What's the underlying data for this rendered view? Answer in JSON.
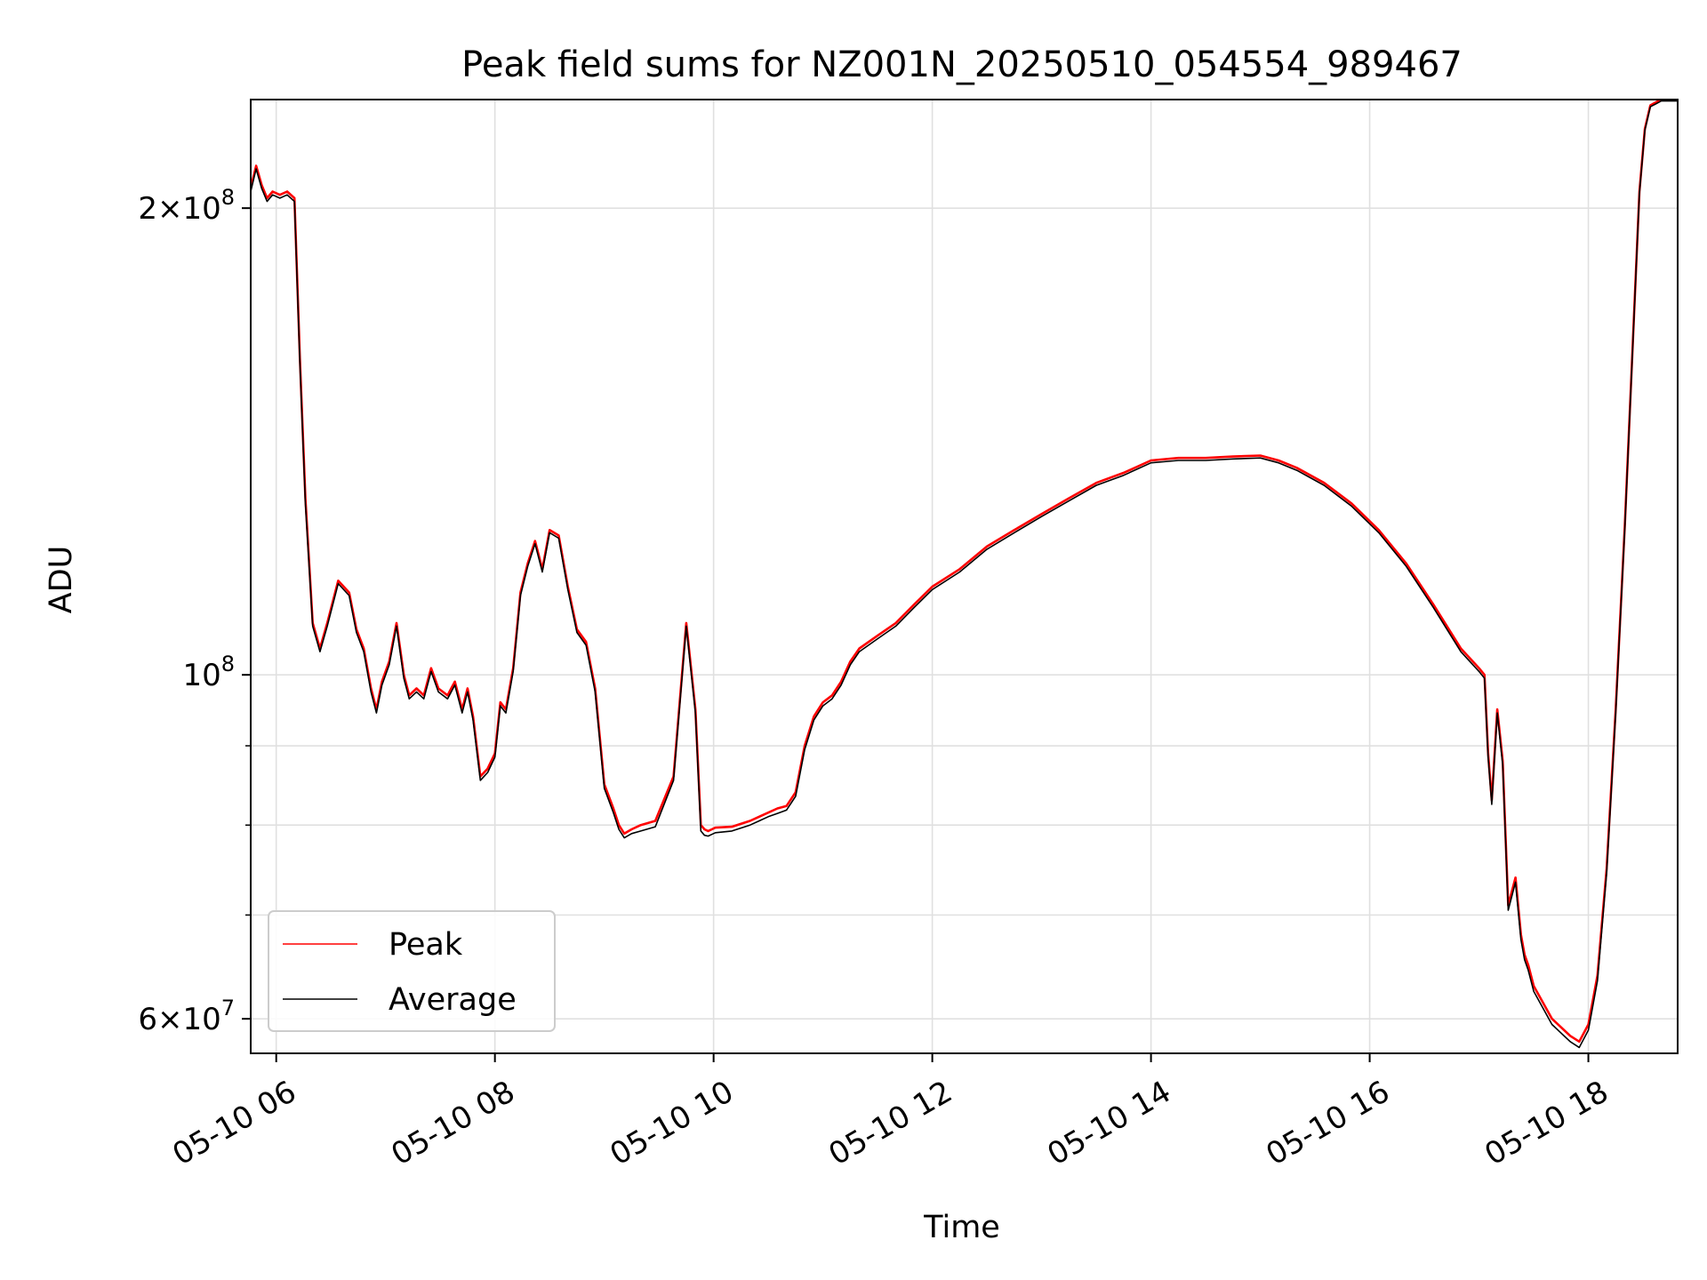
{
  "chart_data": {
    "type": "line",
    "title": "Peak field sums for NZ001N_20250510_054554_989467",
    "xlabel": "Time",
    "ylabel": "ADU",
    "yscale": "log",
    "xlim": [
      "05-10 05:46",
      "05-10 18:49"
    ],
    "ylim": [
      57000000,
      235000000
    ],
    "grid": true,
    "legend_position": "lower-left",
    "x_ticks": [
      {
        "value": "05-10 06:00",
        "label": "05-10 06"
      },
      {
        "value": "05-10 08:00",
        "label": "05-10 08"
      },
      {
        "value": "05-10 10:00",
        "label": "05-10 10"
      },
      {
        "value": "05-10 12:00",
        "label": "05-10 12"
      },
      {
        "value": "05-10 14:00",
        "label": "05-10 14"
      },
      {
        "value": "05-10 16:00",
        "label": "05-10 16"
      },
      {
        "value": "05-10 18:00",
        "label": "05-10 18"
      }
    ],
    "y_ticks": [
      {
        "value": 200000000,
        "mantissa": "2",
        "exponent": "8"
      },
      {
        "value": 100000000,
        "mantissa": "",
        "exponent": "8"
      },
      {
        "value": 60000000,
        "mantissa": "6",
        "exponent": "7"
      }
    ],
    "y_minor_ticks": [
      70000000,
      80000000,
      90000000
    ],
    "series": [
      {
        "name": "Peak",
        "color": "#ff0000",
        "x": [
          "05-10 05:46",
          "05-10 05:49",
          "05-10 05:52",
          "05-10 05:55",
          "05-10 05:58",
          "05-10 06:02",
          "05-10 06:06",
          "05-10 06:10",
          "05-10 06:13",
          "05-10 06:16",
          "05-10 06:20",
          "05-10 06:24",
          "05-10 06:28",
          "05-10 06:34",
          "05-10 06:40",
          "05-10 06:44",
          "05-10 06:48",
          "05-10 06:52",
          "05-10 06:55",
          "05-10 06:58",
          "05-10 07:02",
          "05-10 07:06",
          "05-10 07:10",
          "05-10 07:13",
          "05-10 07:17",
          "05-10 07:21",
          "05-10 07:25",
          "05-10 07:29",
          "05-10 07:34",
          "05-10 07:38",
          "05-10 07:42",
          "05-10 07:45",
          "05-10 07:48",
          "05-10 07:52",
          "05-10 07:56",
          "05-10 08:00",
          "05-10 08:03",
          "05-10 08:06",
          "05-10 08:10",
          "05-10 08:14",
          "05-10 08:18",
          "05-10 08:22",
          "05-10 08:26",
          "05-10 08:30",
          "05-10 08:35",
          "05-10 08:40",
          "05-10 08:45",
          "05-10 08:50",
          "05-10 08:55",
          "05-10 09:00",
          "05-10 09:05",
          "05-10 09:08",
          "05-10 09:11",
          "05-10 09:15",
          "05-10 09:20",
          "05-10 09:28",
          "05-10 09:38",
          "05-10 09:45",
          "05-10 09:50",
          "05-10 09:53",
          "05-10 09:55",
          "05-10 09:57",
          "05-10 09:59",
          "05-10 10:01",
          "05-10 10:10",
          "05-10 10:20",
          "05-10 10:25",
          "05-10 10:30",
          "05-10 10:35",
          "05-10 10:40",
          "05-10 10:45",
          "05-10 10:50",
          "05-10 10:55",
          "05-10 11:00",
          "05-10 11:05",
          "05-10 11:10",
          "05-10 11:15",
          "05-10 11:20",
          "05-10 11:30",
          "05-10 11:40",
          "05-10 11:50",
          "05-10 12:00",
          "05-10 12:15",
          "05-10 12:30",
          "05-10 12:45",
          "05-10 13:00",
          "05-10 13:15",
          "05-10 13:30",
          "05-10 13:45",
          "05-10 14:00",
          "05-10 14:15",
          "05-10 14:30",
          "05-10 14:45",
          "05-10 15:00",
          "05-10 15:10",
          "05-10 15:20",
          "05-10 15:35",
          "05-10 15:50",
          "05-10 16:05",
          "05-10 16:20",
          "05-10 16:35",
          "05-10 16:50",
          "05-10 17:00",
          "05-10 17:03",
          "05-10 17:05",
          "05-10 17:07",
          "05-10 17:10",
          "05-10 17:13",
          "05-10 17:16",
          "05-10 17:20",
          "05-10 17:23",
          "05-10 17:25",
          "05-10 17:27",
          "05-10 17:30",
          "05-10 17:40",
          "05-10 17:50",
          "05-10 17:55",
          "05-10 18:00",
          "05-10 18:05",
          "05-10 18:10",
          "05-10 18:15",
          "05-10 18:20",
          "05-10 18:25",
          "05-10 18:28",
          "05-10 18:31",
          "05-10 18:34",
          "05-10 18:37",
          "05-10 18:40",
          "05-10 18:49"
        ],
        "y": [
          206000000,
          213000000,
          207000000,
          203000000,
          205000000,
          204000000,
          205000000,
          203000000,
          160000000,
          130000000,
          108000000,
          104000000,
          108000000,
          115000000,
          113000000,
          107000000,
          104000000,
          98000000,
          95000000,
          99000000,
          102000000,
          108000000,
          100000000,
          97000000,
          98000000,
          97000000,
          101000000,
          98000000,
          97000000,
          99000000,
          95000000,
          98000000,
          94000000,
          86000000,
          87000000,
          89000000,
          96000000,
          95000000,
          101000000,
          113000000,
          118000000,
          122000000,
          117000000,
          124000000,
          123000000,
          114000000,
          107000000,
          105000000,
          98000000,
          85000000,
          82000000,
          80000000,
          79000000,
          79500000,
          80000000,
          80500000,
          86000000,
          108000000,
          95000000,
          80000000,
          79500000,
          79300000,
          79500000,
          79700000,
          79800000,
          80500000,
          81000000,
          81500000,
          82000000,
          82300000,
          84000000,
          90000000,
          94000000,
          96000000,
          97000000,
          99000000,
          102000000,
          104000000,
          106000000,
          108000000,
          111000000,
          114000000,
          117000000,
          121000000,
          124000000,
          127000000,
          130000000,
          133000000,
          135000000,
          137500000,
          138000000,
          138000000,
          138300000,
          138500000,
          137500000,
          136000000,
          133000000,
          129000000,
          124000000,
          118000000,
          111000000,
          104000000,
          101000000,
          100000000,
          89000000,
          83000000,
          95000000,
          88000000,
          71000000,
          74000000,
          68000000,
          66000000,
          65000000,
          63000000,
          60000000,
          58500000,
          58000000,
          59500000,
          64000000,
          75000000,
          95000000,
          125000000,
          170000000,
          205000000,
          225000000,
          233000000,
          234000000,
          235000000,
          235000000
        ]
      },
      {
        "name": "Average",
        "color": "#000000",
        "x": [
          "05-10 05:46",
          "05-10 05:49",
          "05-10 05:52",
          "05-10 05:55",
          "05-10 05:58",
          "05-10 06:02",
          "05-10 06:06",
          "05-10 06:10",
          "05-10 06:13",
          "05-10 06:16",
          "05-10 06:20",
          "05-10 06:24",
          "05-10 06:28",
          "05-10 06:34",
          "05-10 06:40",
          "05-10 06:44",
          "05-10 06:48",
          "05-10 06:52",
          "05-10 06:55",
          "05-10 06:58",
          "05-10 07:02",
          "05-10 07:06",
          "05-10 07:10",
          "05-10 07:13",
          "05-10 07:17",
          "05-10 07:21",
          "05-10 07:25",
          "05-10 07:29",
          "05-10 07:34",
          "05-10 07:38",
          "05-10 07:42",
          "05-10 07:45",
          "05-10 07:48",
          "05-10 07:52",
          "05-10 07:56",
          "05-10 08:00",
          "05-10 08:03",
          "05-10 08:06",
          "05-10 08:10",
          "05-10 08:14",
          "05-10 08:18",
          "05-10 08:22",
          "05-10 08:26",
          "05-10 08:30",
          "05-10 08:35",
          "05-10 08:40",
          "05-10 08:45",
          "05-10 08:50",
          "05-10 08:55",
          "05-10 09:00",
          "05-10 09:05",
          "05-10 09:08",
          "05-10 09:11",
          "05-10 09:15",
          "05-10 09:20",
          "05-10 09:28",
          "05-10 09:38",
          "05-10 09:45",
          "05-10 09:50",
          "05-10 09:53",
          "05-10 09:55",
          "05-10 09:57",
          "05-10 09:59",
          "05-10 10:01",
          "05-10 10:10",
          "05-10 10:20",
          "05-10 10:25",
          "05-10 10:30",
          "05-10 10:35",
          "05-10 10:40",
          "05-10 10:45",
          "05-10 10:50",
          "05-10 10:55",
          "05-10 11:00",
          "05-10 11:05",
          "05-10 11:10",
          "05-10 11:15",
          "05-10 11:20",
          "05-10 11:30",
          "05-10 11:40",
          "05-10 11:50",
          "05-10 12:00",
          "05-10 12:15",
          "05-10 12:30",
          "05-10 12:45",
          "05-10 13:00",
          "05-10 13:15",
          "05-10 13:30",
          "05-10 13:45",
          "05-10 14:00",
          "05-10 14:15",
          "05-10 14:30",
          "05-10 14:45",
          "05-10 15:00",
          "05-10 15:10",
          "05-10 15:20",
          "05-10 15:35",
          "05-10 15:50",
          "05-10 16:05",
          "05-10 16:20",
          "05-10 16:35",
          "05-10 16:50",
          "05-10 17:00",
          "05-10 17:03",
          "05-10 17:05",
          "05-10 17:07",
          "05-10 17:10",
          "05-10 17:13",
          "05-10 17:16",
          "05-10 17:20",
          "05-10 17:23",
          "05-10 17:25",
          "05-10 17:27",
          "05-10 17:30",
          "05-10 17:40",
          "05-10 17:50",
          "05-10 17:55",
          "05-10 18:00",
          "05-10 18:05",
          "05-10 18:10",
          "05-10 18:15",
          "05-10 18:20",
          "05-10 18:25",
          "05-10 18:28",
          "05-10 18:31",
          "05-10 18:34",
          "05-10 18:37",
          "05-10 18:40",
          "05-10 18:49"
        ],
        "y": [
          205000000,
          212000000,
          206000000,
          202000000,
          204000000,
          203000000,
          204000000,
          202000000,
          159000000,
          129000000,
          107500000,
          103500000,
          107500000,
          114500000,
          112500000,
          106500000,
          103500000,
          97500000,
          94500000,
          98500000,
          101500000,
          107500000,
          99500000,
          96500000,
          97500000,
          96500000,
          100500000,
          97500000,
          96500000,
          98500000,
          94500000,
          97500000,
          93500000,
          85500000,
          86500000,
          88500000,
          95500000,
          94500000,
          100500000,
          112500000,
          117500000,
          121500000,
          116500000,
          123500000,
          122500000,
          113500000,
          106500000,
          104500000,
          97500000,
          84500000,
          81500000,
          79500000,
          78500000,
          79000000,
          79300000,
          79800000,
          85500000,
          107500000,
          94500000,
          79300000,
          78800000,
          78700000,
          78900000,
          79100000,
          79300000,
          80000000,
          80500000,
          81000000,
          81400000,
          81800000,
          83500000,
          89500000,
          93500000,
          95500000,
          96500000,
          98500000,
          101500000,
          103500000,
          105500000,
          107500000,
          110500000,
          113500000,
          116500000,
          120500000,
          123500000,
          126500000,
          129500000,
          132500000,
          134500000,
          137000000,
          137500000,
          137500000,
          137800000,
          138000000,
          137000000,
          135500000,
          132500000,
          128500000,
          123500000,
          117500000,
          110500000,
          103500000,
          100500000,
          99500000,
          88500000,
          82500000,
          94500000,
          87500000,
          70500000,
          73500000,
          67500000,
          65500000,
          64500000,
          62500000,
          59500000,
          58000000,
          57500000,
          59000000,
          63500000,
          74500000,
          94500000,
          124500000,
          169500000,
          204500000,
          224500000,
          232500000,
          233500000,
          234500000,
          234500000
        ]
      }
    ]
  }
}
